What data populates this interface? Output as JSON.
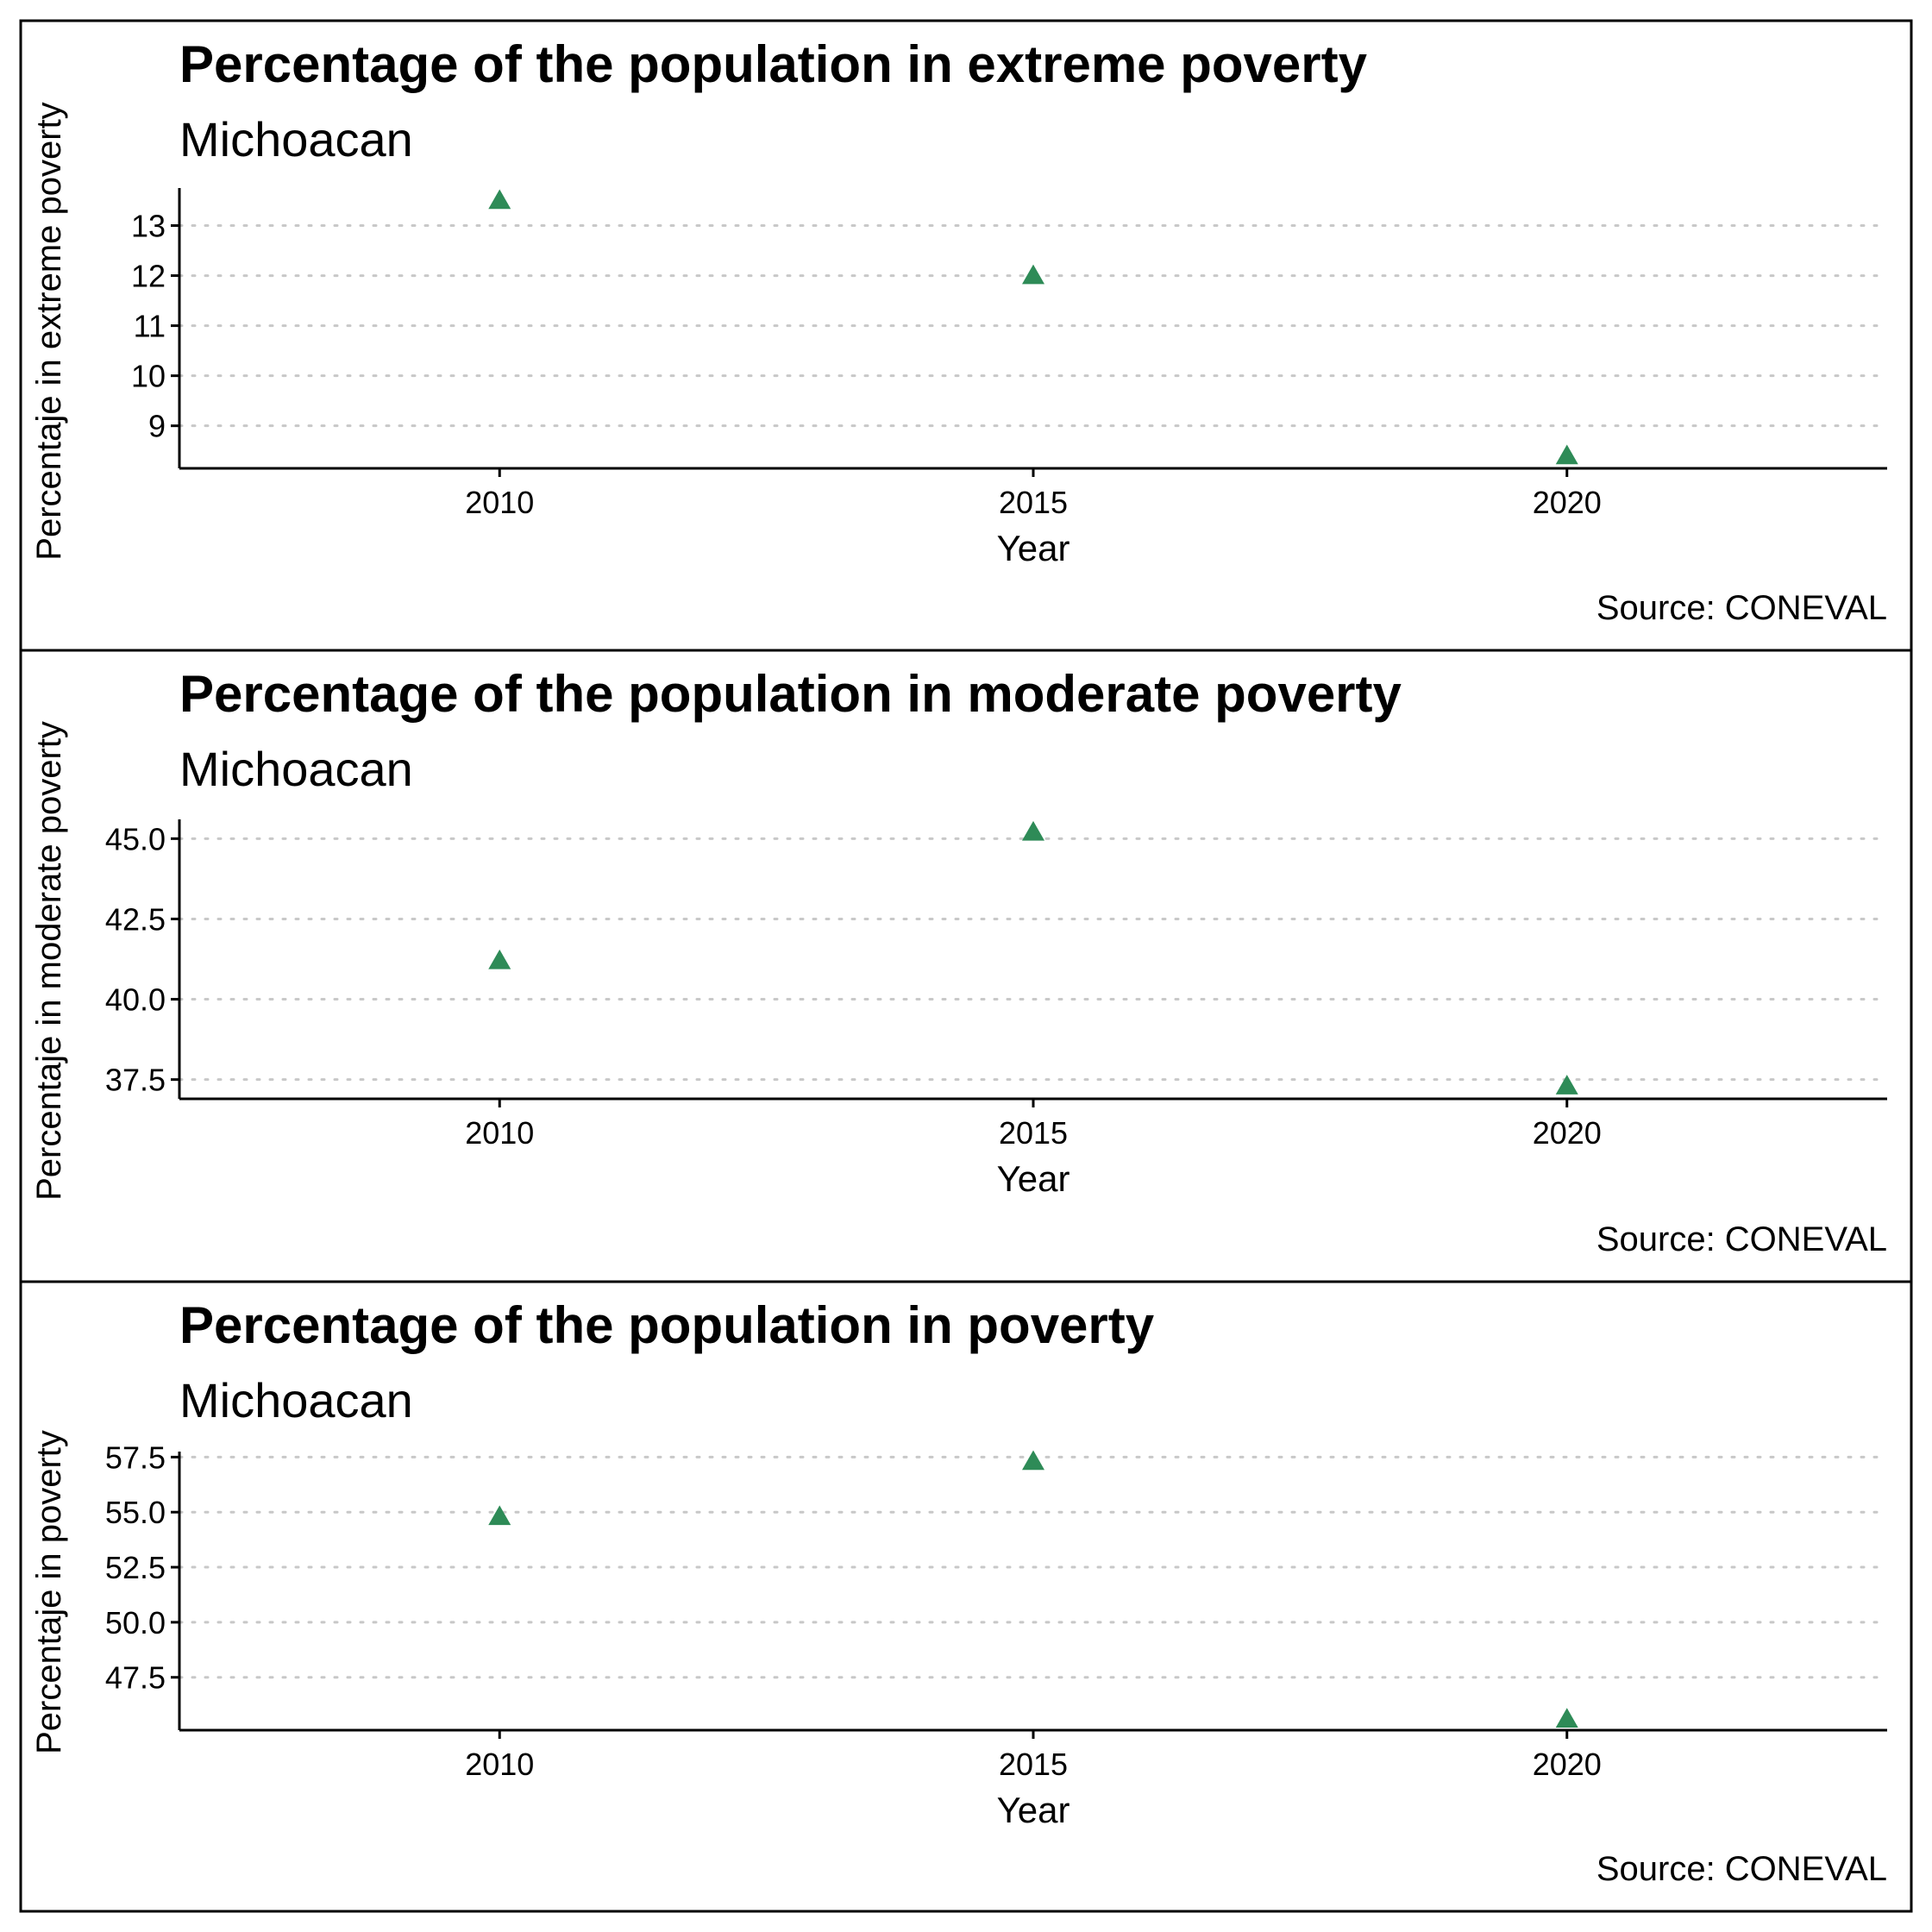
{
  "accent_color": "#2e8b57",
  "chart_data": [
    {
      "type": "scatter",
      "title": "Percentage of the population in extreme poverty",
      "subtitle": "Michoacan",
      "xlabel": "Year",
      "ylabel": "Percentaje in extreme poverty",
      "caption": "Source: CONEVAL",
      "x": [
        2010,
        2015,
        2020
      ],
      "values": [
        13.5,
        12.0,
        8.4
      ],
      "xticks": [
        2010,
        2015,
        2020
      ],
      "xlim": [
        2007,
        2023
      ],
      "yticks": [
        9,
        10,
        11,
        12,
        13
      ],
      "ytick_labels": [
        "9",
        "10",
        "11",
        "12",
        "13"
      ],
      "ylim": [
        8.15,
        13.75
      ],
      "grid": "horizontal dotted",
      "marker": "triangle"
    },
    {
      "type": "scatter",
      "title": "Percentage of the population in moderate poverty",
      "subtitle": "Michoacan",
      "xlabel": "Year",
      "ylabel": "Percentaje in moderate poverty",
      "caption": "Source: CONEVAL",
      "x": [
        2010,
        2015,
        2020
      ],
      "values": [
        41.2,
        45.2,
        37.3
      ],
      "xticks": [
        2010,
        2015,
        2020
      ],
      "xlim": [
        2007,
        2023
      ],
      "yticks": [
        37.5,
        40.0,
        42.5,
        45.0
      ],
      "ytick_labels": [
        "37.5",
        "40.0",
        "42.5",
        "45.0"
      ],
      "ylim": [
        36.9,
        45.6
      ],
      "grid": "horizontal dotted",
      "marker": "triangle"
    },
    {
      "type": "scatter",
      "title": "Percentage of the population in poverty",
      "subtitle": "Michoacan",
      "xlabel": "Year",
      "ylabel": "Percentaje in poverty",
      "caption": "Source: CONEVAL",
      "x": [
        2010,
        2015,
        2020
      ],
      "values": [
        54.8,
        57.3,
        45.6
      ],
      "xticks": [
        2010,
        2015,
        2020
      ],
      "xlim": [
        2007,
        2023
      ],
      "yticks": [
        47.5,
        50.0,
        52.5,
        55.0,
        57.5
      ],
      "ytick_labels": [
        "47.5",
        "50.0",
        "52.5",
        "55.0",
        "57.5"
      ],
      "ylim": [
        45.1,
        57.75
      ],
      "grid": "horizontal dotted",
      "marker": "triangle"
    }
  ]
}
